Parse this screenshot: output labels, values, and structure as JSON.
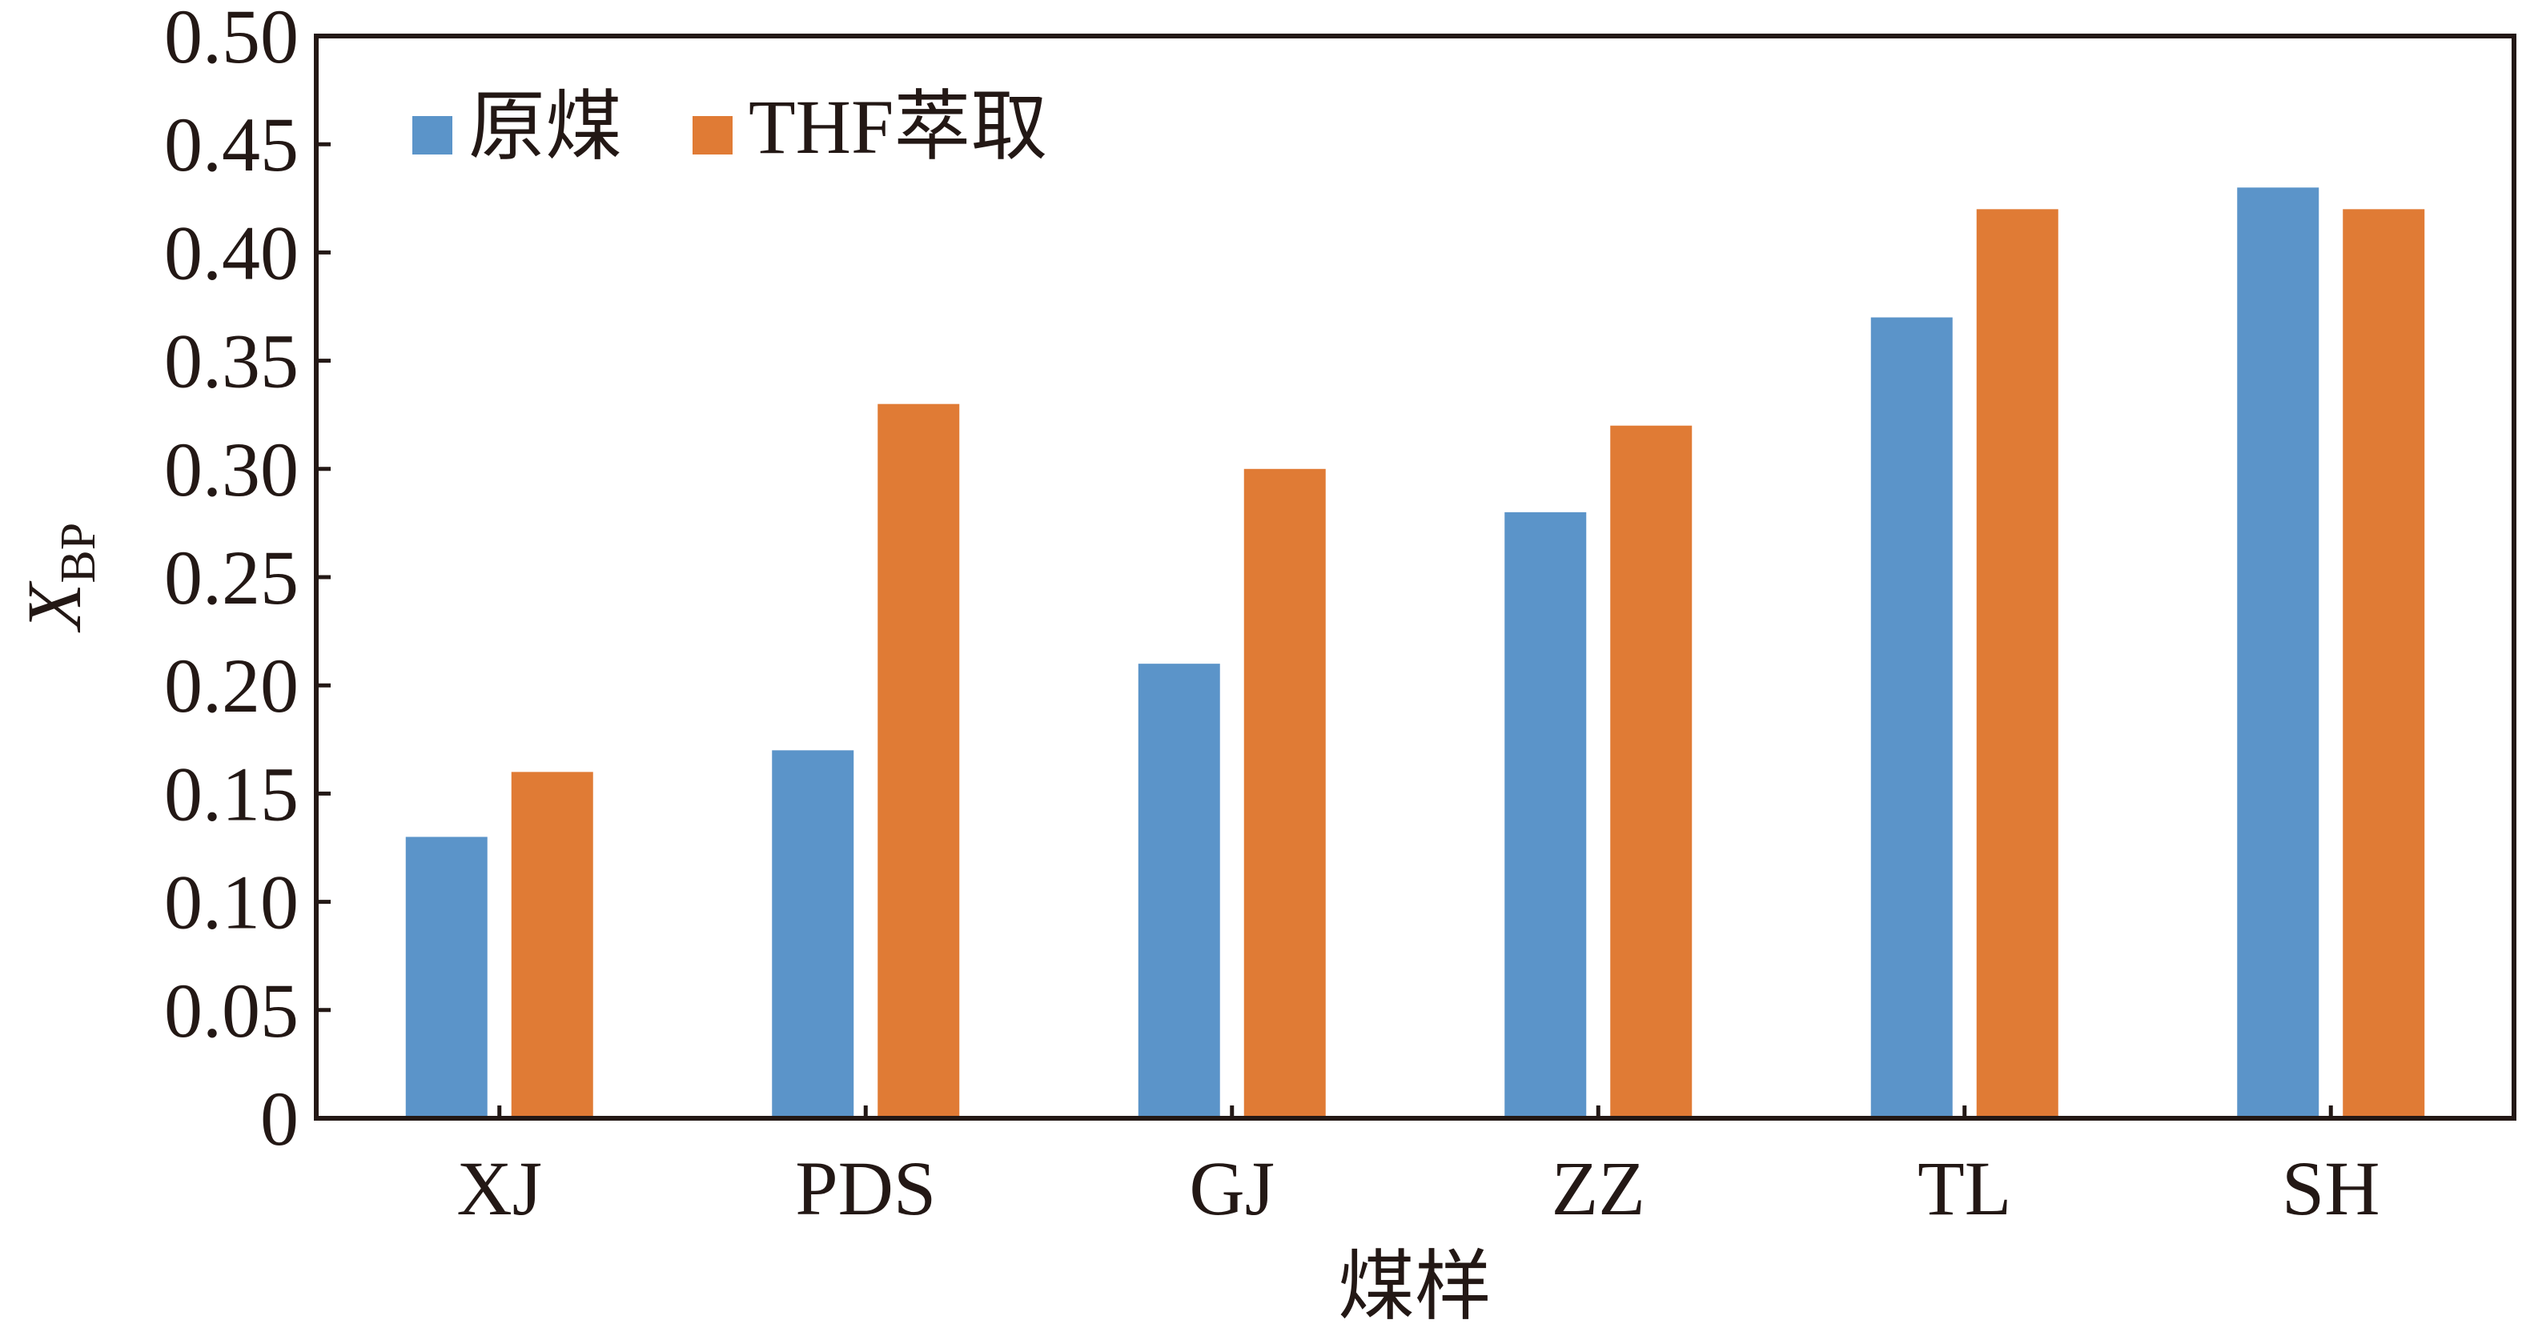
{
  "chart_data": {
    "type": "bar",
    "title": "",
    "xlabel": "煤样",
    "ylabel": {
      "main": "X",
      "subscript": "BP"
    },
    "categories": [
      "XJ",
      "PDS",
      "GJ",
      "ZZ",
      "TL",
      "SH"
    ],
    "series": [
      {
        "name": "原煤",
        "color": "#5B94C9",
        "values": [
          0.13,
          0.17,
          0.21,
          0.28,
          0.37,
          0.43
        ]
      },
      {
        "name": "THF萃取",
        "color": "#E07B35",
        "values": [
          0.16,
          0.33,
          0.3,
          0.32,
          0.42,
          0.42
        ]
      }
    ],
    "ylim": [
      0,
      0.5
    ],
    "yticks": [
      "0",
      "0.05",
      "0.10",
      "0.15",
      "0.20",
      "0.25",
      "0.30",
      "0.35",
      "0.40",
      "0.45",
      "0.50"
    ],
    "grid": false,
    "legend_position": "top-left"
  }
}
